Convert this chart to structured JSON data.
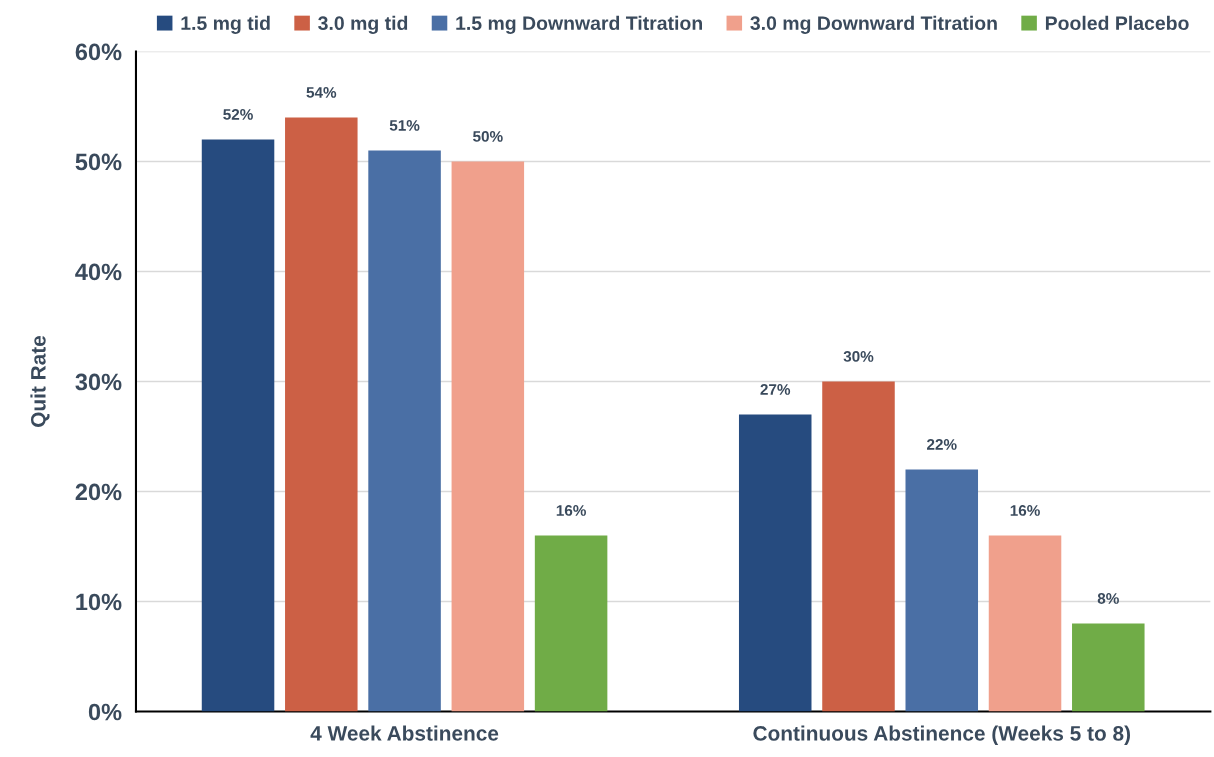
{
  "chart_data": {
    "type": "bar",
    "ylabel": "Quit Rate",
    "categories": [
      "4 Week Abstinence",
      "Continuous Abstinence (Weeks 5 to 8)"
    ],
    "series": [
      {
        "name": "1.5 mg tid",
        "color": "#264b7f",
        "values": [
          52,
          27
        ],
        "value_labels": [
          "52%",
          "27%"
        ]
      },
      {
        "name": "3.0 mg tid",
        "color": "#cc6045",
        "values": [
          54,
          30
        ],
        "value_labels": [
          "54%",
          "30%"
        ]
      },
      {
        "name": "1.5 mg Downward Titration",
        "color": "#4a6fa5",
        "values": [
          51,
          22
        ],
        "value_labels": [
          "51%",
          "22%"
        ]
      },
      {
        "name": "3.0 mg Downward Titration",
        "color": "#f0a08c",
        "values": [
          50,
          16
        ],
        "value_labels": [
          "50%",
          "16%"
        ]
      },
      {
        "name": "Pooled Placebo",
        "color": "#70ac47",
        "values": [
          16,
          8
        ],
        "value_labels": [
          "16%",
          "8%"
        ]
      }
    ],
    "ylim": [
      0,
      60
    ],
    "yticks": [
      {
        "value": 0,
        "label": "0%"
      },
      {
        "value": 10,
        "label": "10%"
      },
      {
        "value": 20,
        "label": "20%"
      },
      {
        "value": 30,
        "label": "30%"
      },
      {
        "value": 40,
        "label": "40%"
      },
      {
        "value": 50,
        "label": "50%"
      },
      {
        "value": 60,
        "label": "60%"
      }
    ],
    "grid": "y",
    "legend": "top"
  }
}
